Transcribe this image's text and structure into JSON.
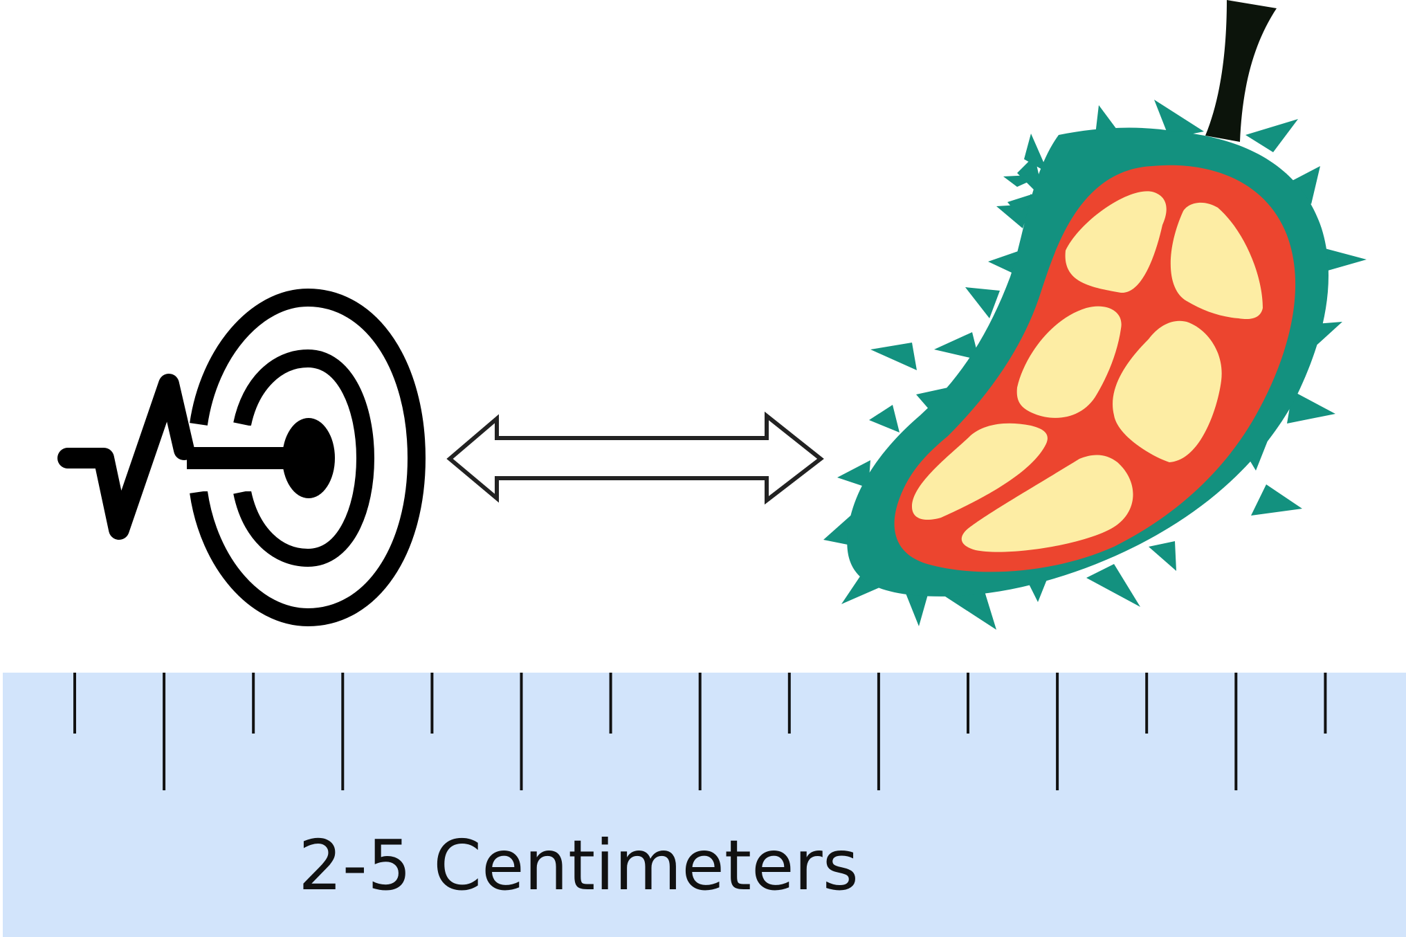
{
  "ruler": {
    "label": "2-5 Centimeters",
    "background_color": "#d2e4fb",
    "tick_color": "#111111",
    "tick_count": 15
  },
  "icons": {
    "left": "sensor-target-icon",
    "middle": "double-arrow-icon",
    "right": "durian-fruit-icon"
  },
  "colors": {
    "durian_shell": "#13917f",
    "durian_flesh_bg": "#ec452f",
    "durian_pods": "#fdeda4",
    "stem": "#0c140b",
    "sensor": "#000000"
  }
}
